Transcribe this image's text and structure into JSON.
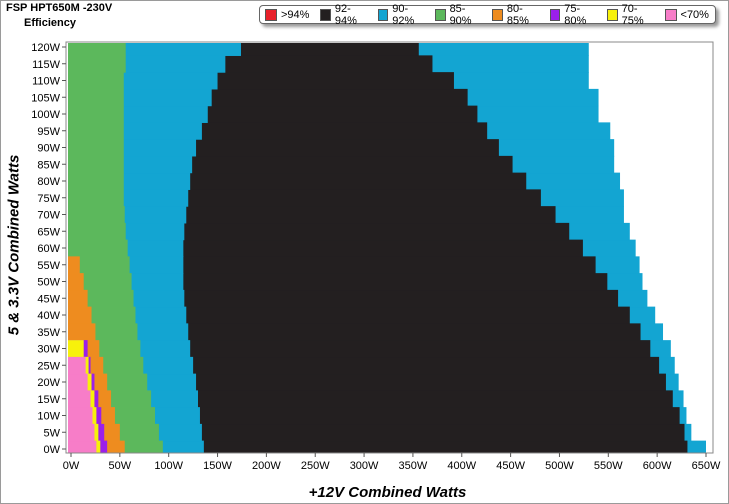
{
  "header": {
    "title": "FSP HPT650M -230V",
    "subtitle": "Efficiency"
  },
  "legend": [
    {
      "label": ">94%",
      "color": "#e8202a"
    },
    {
      "label": "92-94%",
      "color": "#231f20"
    },
    {
      "label": "90-92%",
      "color": "#13a5d2"
    },
    {
      "label": "85-90%",
      "color": "#5cb85c"
    },
    {
      "label": "80-85%",
      "color": "#ee8c1f"
    },
    {
      "label": "75-80%",
      "color": "#9b1fea"
    },
    {
      "label": "70-75%",
      "color": "#f7f10b"
    },
    {
      "label": "<70%",
      "color": "#f77dc8"
    }
  ],
  "chart_data": {
    "type": "heatmap",
    "xlabel": "+12V Combined Watts",
    "ylabel": "5 & 3.3V Combined Watts",
    "x_ticks": [
      "0W",
      "50W",
      "100W",
      "150W",
      "200W",
      "250W",
      "300W",
      "350W",
      "400W",
      "450W",
      "500W",
      "550W",
      "600W",
      "650W"
    ],
    "y_ticks": [
      "0W",
      "5W",
      "10W",
      "15W",
      "20W",
      "25W",
      "30W",
      "35W",
      "40W",
      "45W",
      "50W",
      "55W",
      "60W",
      "65W",
      "70W",
      "75W",
      "80W",
      "85W",
      "90W",
      "95W",
      "100W",
      "105W",
      "110W",
      "115W",
      "120W"
    ],
    "xlim": [
      0,
      650
    ],
    "ylim": [
      0,
      120
    ],
    "grid": false,
    "legend_position": "top-right",
    "zones": {
      "y": [
        0,
        5,
        10,
        15,
        20,
        25,
        30,
        35,
        40,
        45,
        50,
        55,
        60,
        65,
        70,
        75,
        80,
        85,
        90,
        95,
        100,
        105,
        110,
        115,
        120
      ],
      "pink_lt70_upper_x": [
        26,
        24,
        22,
        20,
        17,
        15,
        0,
        0,
        0,
        0,
        0,
        0,
        0,
        0,
        0,
        0,
        0,
        0,
        0,
        0,
        0,
        0,
        0,
        0,
        0
      ],
      "yellow_70_75_upper_x": [
        30,
        28,
        26,
        24,
        21,
        18,
        13,
        0,
        0,
        0,
        0,
        0,
        0,
        0,
        0,
        0,
        0,
        0,
        0,
        0,
        0,
        0,
        0,
        0,
        0
      ],
      "purple_75_80_upper_x": [
        37,
        34,
        31,
        28,
        24,
        20,
        17,
        0,
        0,
        0,
        0,
        0,
        0,
        0,
        0,
        0,
        0,
        0,
        0,
        0,
        0,
        0,
        0,
        0,
        0
      ],
      "orange_80_85_upper_x": [
        55,
        50,
        45,
        41,
        37,
        33,
        29,
        25,
        21,
        17,
        13,
        9,
        0,
        0,
        0,
        0,
        0,
        0,
        0,
        0,
        0,
        0,
        0,
        0,
        0
      ],
      "green_85_90_upper_x": [
        94,
        90,
        86,
        82,
        78,
        74,
        71,
        68,
        66,
        64,
        62,
        60,
        58,
        56,
        55,
        54,
        54,
        54,
        54,
        54,
        54,
        54,
        54,
        56,
        56
      ],
      "blue_90_92_upper_x": [
        136,
        134,
        132,
        130,
        128,
        125,
        122,
        120,
        118,
        116,
        115,
        115,
        115,
        116,
        118,
        120,
        122,
        124,
        128,
        134,
        140,
        144,
        150,
        158,
        174
      ],
      "black_92_94_upper_x": [
        631,
        628,
        623,
        616,
        609,
        602,
        593,
        583,
        572,
        560,
        549,
        537,
        524,
        510,
        496,
        481,
        466,
        452,
        438,
        426,
        416,
        406,
        392,
        370,
        356
      ],
      "blue_outer_upper_x": [
        650,
        635,
        630,
        627,
        622,
        618,
        614,
        606,
        598,
        590,
        585,
        582,
        578,
        572,
        566,
        566,
        562,
        556,
        556,
        552,
        540,
        540,
        530,
        530,
        530
      ]
    }
  }
}
